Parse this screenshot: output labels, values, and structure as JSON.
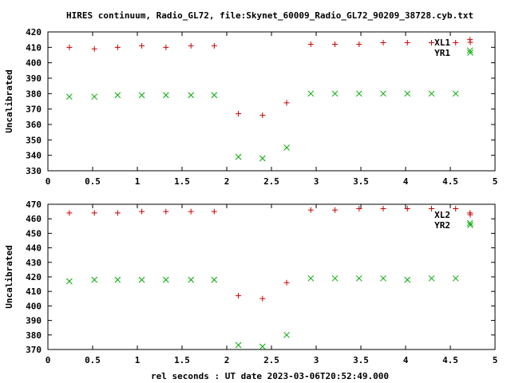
{
  "title": "HIRES continuum, Radio_GL72, file:Skynet_60009_Radio_GL72_90209_38728.cyb.txt",
  "xlabel": "rel seconds : UT date 2023-03-06T20:52:49.000",
  "colors": {
    "series1": "#cc0000",
    "series2": "#00aa00",
    "axis": "#000000"
  },
  "chart_data": [
    {
      "type": "scatter",
      "ylabel": "Uncalibrated",
      "xlim": [
        0,
        5
      ],
      "ylim": [
        330,
        420
      ],
      "xticks": [
        0,
        0.5,
        1,
        1.5,
        2,
        2.5,
        3,
        3.5,
        4,
        4.5,
        5
      ],
      "yticks": [
        330,
        340,
        350,
        360,
        370,
        380,
        390,
        400,
        410,
        420
      ],
      "legend_position": "top-right",
      "series": [
        {
          "name": "XL1",
          "marker": "plus",
          "x": [
            0.24,
            0.52,
            0.78,
            1.05,
            1.32,
            1.6,
            1.86,
            2.13,
            2.4,
            2.67,
            2.94,
            3.21,
            3.48,
            3.75,
            4.02,
            4.29,
            4.56,
            4.72
          ],
          "y": [
            410,
            409,
            410,
            411,
            410,
            411,
            411,
            367,
            366,
            374,
            412,
            412,
            412,
            413,
            413,
            413,
            413,
            415
          ]
        },
        {
          "name": "YR1",
          "marker": "cross",
          "x": [
            0.24,
            0.52,
            0.78,
            1.05,
            1.32,
            1.6,
            1.86,
            2.13,
            2.4,
            2.67,
            2.94,
            3.21,
            3.48,
            3.75,
            4.02,
            4.29,
            4.56,
            4.72
          ],
          "y": [
            378,
            378,
            379,
            379,
            379,
            379,
            379,
            339,
            338,
            345,
            380,
            380,
            380,
            380,
            380,
            380,
            380,
            408
          ]
        }
      ]
    },
    {
      "type": "scatter",
      "ylabel": "Uncalibrated",
      "xlim": [
        0,
        5
      ],
      "ylim": [
        370,
        470
      ],
      "xticks": [
        0,
        0.5,
        1,
        1.5,
        2,
        2.5,
        3,
        3.5,
        4,
        4.5,
        5
      ],
      "yticks": [
        370,
        380,
        390,
        400,
        410,
        420,
        430,
        440,
        450,
        460,
        470
      ],
      "legend_position": "top-right",
      "series": [
        {
          "name": "XL2",
          "marker": "plus",
          "x": [
            0.24,
            0.52,
            0.78,
            1.05,
            1.32,
            1.6,
            1.86,
            2.13,
            2.4,
            2.67,
            2.94,
            3.21,
            3.48,
            3.75,
            4.02,
            4.29,
            4.56,
            4.72
          ],
          "y": [
            464,
            464,
            464,
            465,
            465,
            465,
            465,
            407,
            405,
            416,
            466,
            466,
            467,
            467,
            467,
            467,
            467,
            464
          ]
        },
        {
          "name": "YR2",
          "marker": "cross",
          "x": [
            0.24,
            0.52,
            0.78,
            1.05,
            1.32,
            1.6,
            1.86,
            2.13,
            2.4,
            2.67,
            2.94,
            3.21,
            3.48,
            3.75,
            4.02,
            4.29,
            4.56,
            4.72
          ],
          "y": [
            417,
            418,
            418,
            418,
            418,
            418,
            418,
            373,
            372,
            380,
            419,
            419,
            419,
            419,
            418,
            419,
            419,
            457
          ]
        }
      ]
    }
  ]
}
